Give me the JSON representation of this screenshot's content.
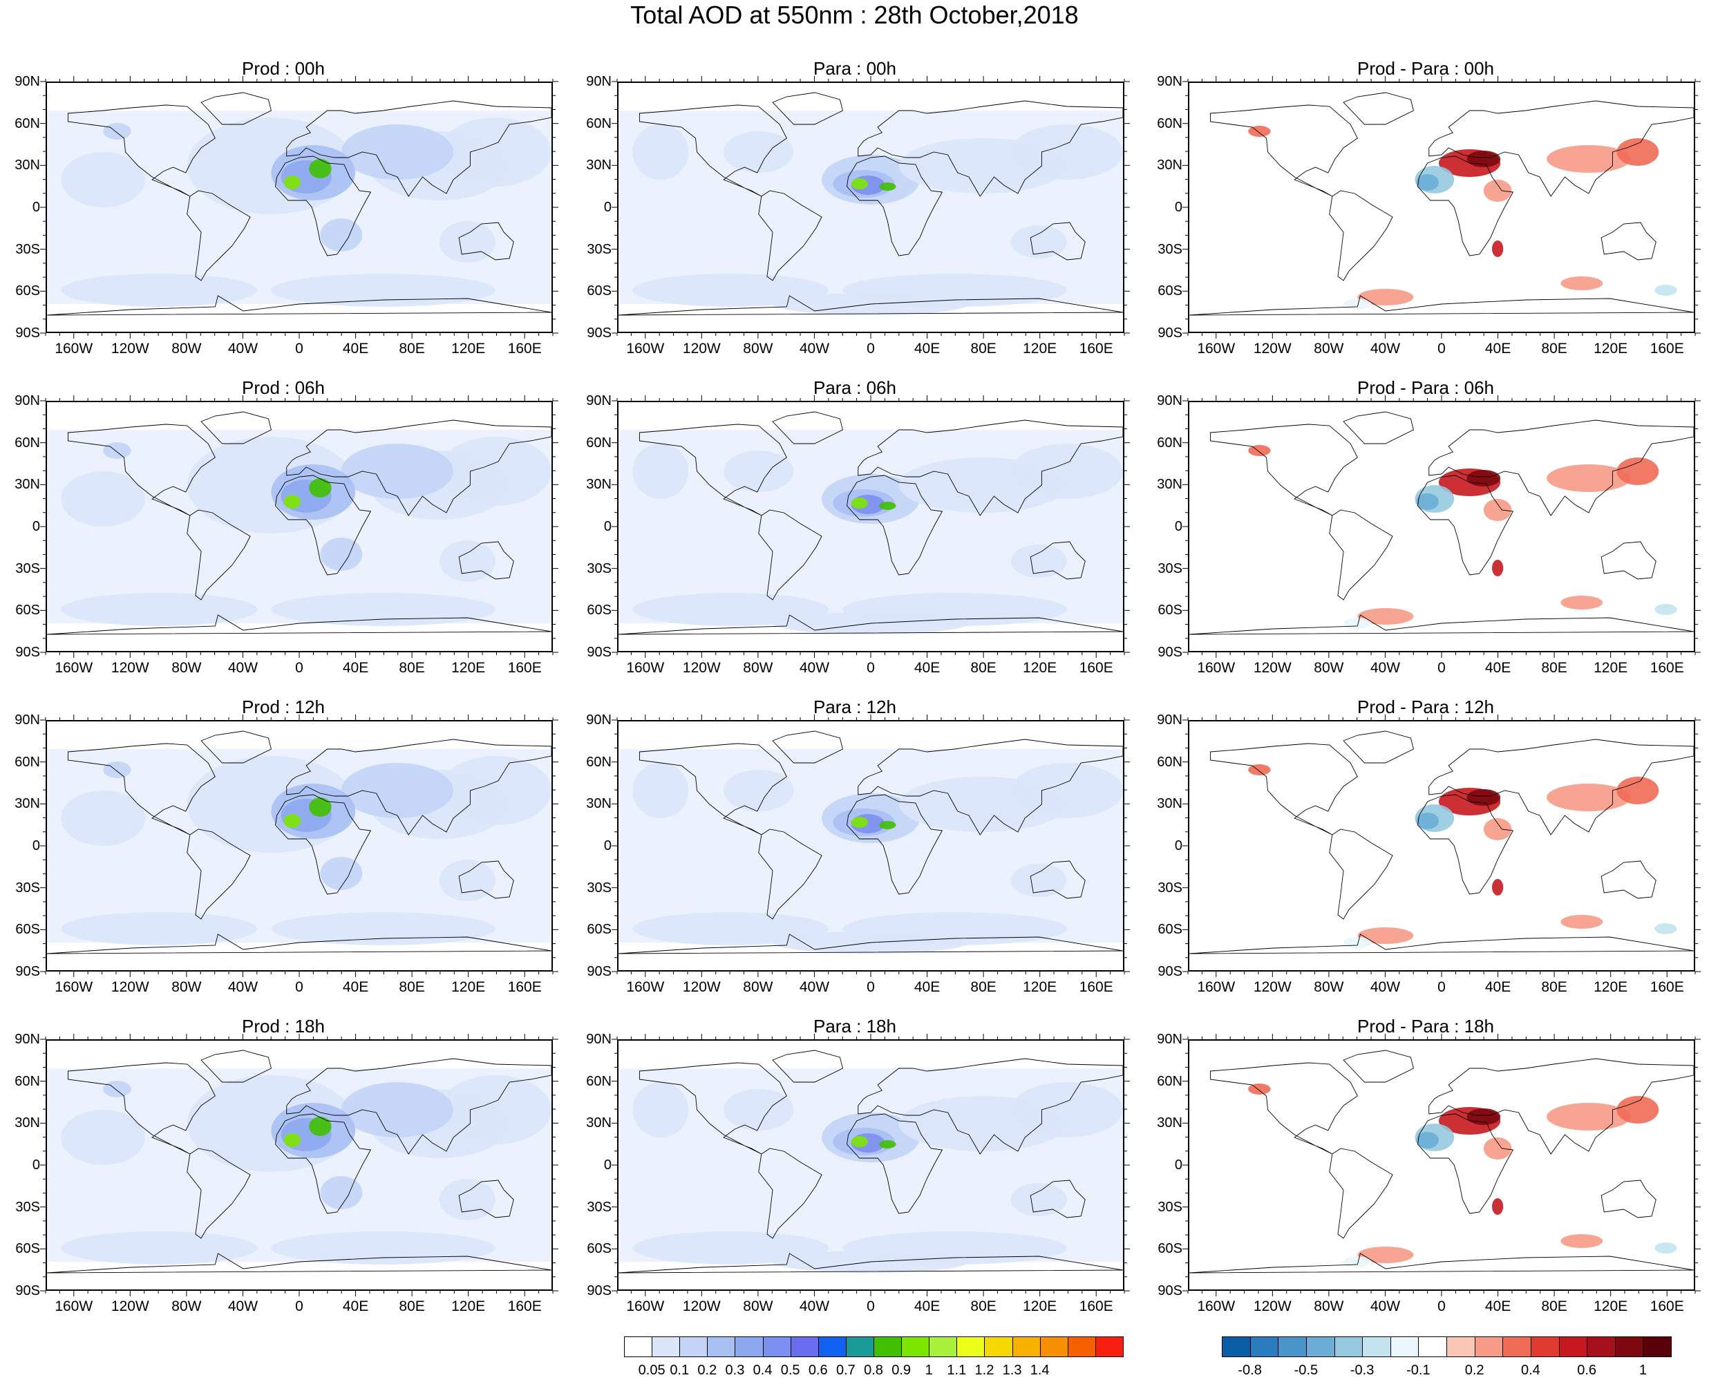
{
  "title": "Total AOD at 550nm : 28th October,2018",
  "lat_labels": [
    "90N",
    "60N",
    "30N",
    "0",
    "30S",
    "60S",
    "90S"
  ],
  "lon_labels": [
    "160W",
    "120W",
    "80W",
    "40W",
    "0",
    "40E",
    "80E",
    "120E",
    "160E"
  ],
  "panels": [
    {
      "title": "Prod : 00h",
      "kind": "prod"
    },
    {
      "title": "Para : 00h",
      "kind": "para"
    },
    {
      "title": "Prod - Para : 00h",
      "kind": "diff"
    },
    {
      "title": "Prod : 06h",
      "kind": "prod"
    },
    {
      "title": "Para : 06h",
      "kind": "para"
    },
    {
      "title": "Prod - Para : 06h",
      "kind": "diff"
    },
    {
      "title": "Prod : 12h",
      "kind": "prod"
    },
    {
      "title": "Para : 12h",
      "kind": "para"
    },
    {
      "title": "Prod - Para : 12h",
      "kind": "diff"
    },
    {
      "title": "Prod : 18h",
      "kind": "prod"
    },
    {
      "title": "Para : 18h",
      "kind": "para"
    },
    {
      "title": "Prod - Para : 18h",
      "kind": "diff"
    }
  ],
  "colorbar_aod": {
    "labels": [
      "0.05",
      "0.1",
      "0.2",
      "0.3",
      "0.4",
      "0.5",
      "0.6",
      "0.7",
      "0.8",
      "0.9",
      "1",
      "1.1",
      "1.2",
      "1.3",
      "1.4"
    ],
    "colors": [
      "#ffffff",
      "#dbe6fb",
      "#c3d4f7",
      "#a9c0f3",
      "#8ea8ef",
      "#7b8ff0",
      "#6a6cf0",
      "#1260f0",
      "#1a9a96",
      "#40c000",
      "#7de600",
      "#a8f03c",
      "#ecff18",
      "#f5d800",
      "#f7b000",
      "#f79000",
      "#f76000",
      "#f72010"
    ]
  },
  "colorbar_diff": {
    "labels": [
      "-0.8",
      "-0.5",
      "-0.3",
      "-0.1",
      "0.2",
      "0.4",
      "0.6",
      "1"
    ],
    "colors": [
      "#0b5ea6",
      "#2a7dbf",
      "#4994c9",
      "#6aaed6",
      "#96c9df",
      "#c3e4ee",
      "#eaf6fb",
      "#ffffff",
      "#fbc7b5",
      "#f79a86",
      "#f06b56",
      "#e03c32",
      "#c6181e",
      "#a5101a",
      "#7d0810",
      "#5a0008"
    ]
  },
  "legend_pos": {
    "aod": "bottom-center",
    "diff": "bottom-right"
  }
}
